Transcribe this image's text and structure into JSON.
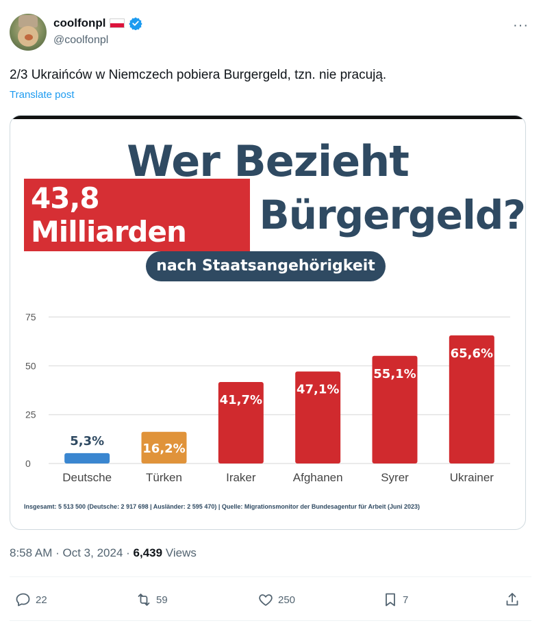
{
  "author": {
    "display_name": "coolfonpl",
    "handle": "@coolfonpl",
    "flag_icon": "poland-flag-icon",
    "verified_icon": "verified-badge-icon",
    "verified_color": "#1d9bf0"
  },
  "more_icon": "more-options-icon",
  "post": {
    "text": "2/3 Ukraińców w Niemczech pobiera Burgergeld, tzn. nie pracują.",
    "translate_label": "Translate post"
  },
  "image": {
    "title_line1": "Wer Bezieht",
    "title_highlight": "43,8 Milliarden",
    "title_line2": "Bürgergeld?",
    "subtitle": "nach Staatsangehörigkeit",
    "footnote": "Insgesamt: 5 513 500 (Deutsche: 2 917 698 | Ausländer: 2 595 470) | Quelle: Migrationsmonitor der Bundesagentur für Arbeit (Juni 2023)"
  },
  "chart_data": {
    "type": "bar",
    "categories": [
      "Deutsche",
      "Türken",
      "Iraker",
      "Afghanen",
      "Syrer",
      "Ukrainer"
    ],
    "values": [
      5.3,
      16.2,
      41.7,
      47.1,
      55.1,
      65.6
    ],
    "data_labels": [
      "5,3%",
      "16,2%",
      "41,7%",
      "47,1%",
      "55,1%",
      "65,6%"
    ],
    "colors": [
      "#3a86d0",
      "#e0933a",
      "#d02a2e",
      "#d02a2e",
      "#d02a2e",
      "#d02a2e"
    ],
    "yticks": [
      "0",
      "25",
      "50",
      "75"
    ],
    "ylim": [
      0,
      75
    ],
    "grid": true
  },
  "meta": {
    "time": "8:58 AM",
    "separator": "·",
    "date": "Oct 3, 2024",
    "views_count": "6,439",
    "views_label": "Views"
  },
  "actions": {
    "reply_count": "22",
    "repost_count": "59",
    "like_count": "250",
    "bookmark_count": "7"
  }
}
